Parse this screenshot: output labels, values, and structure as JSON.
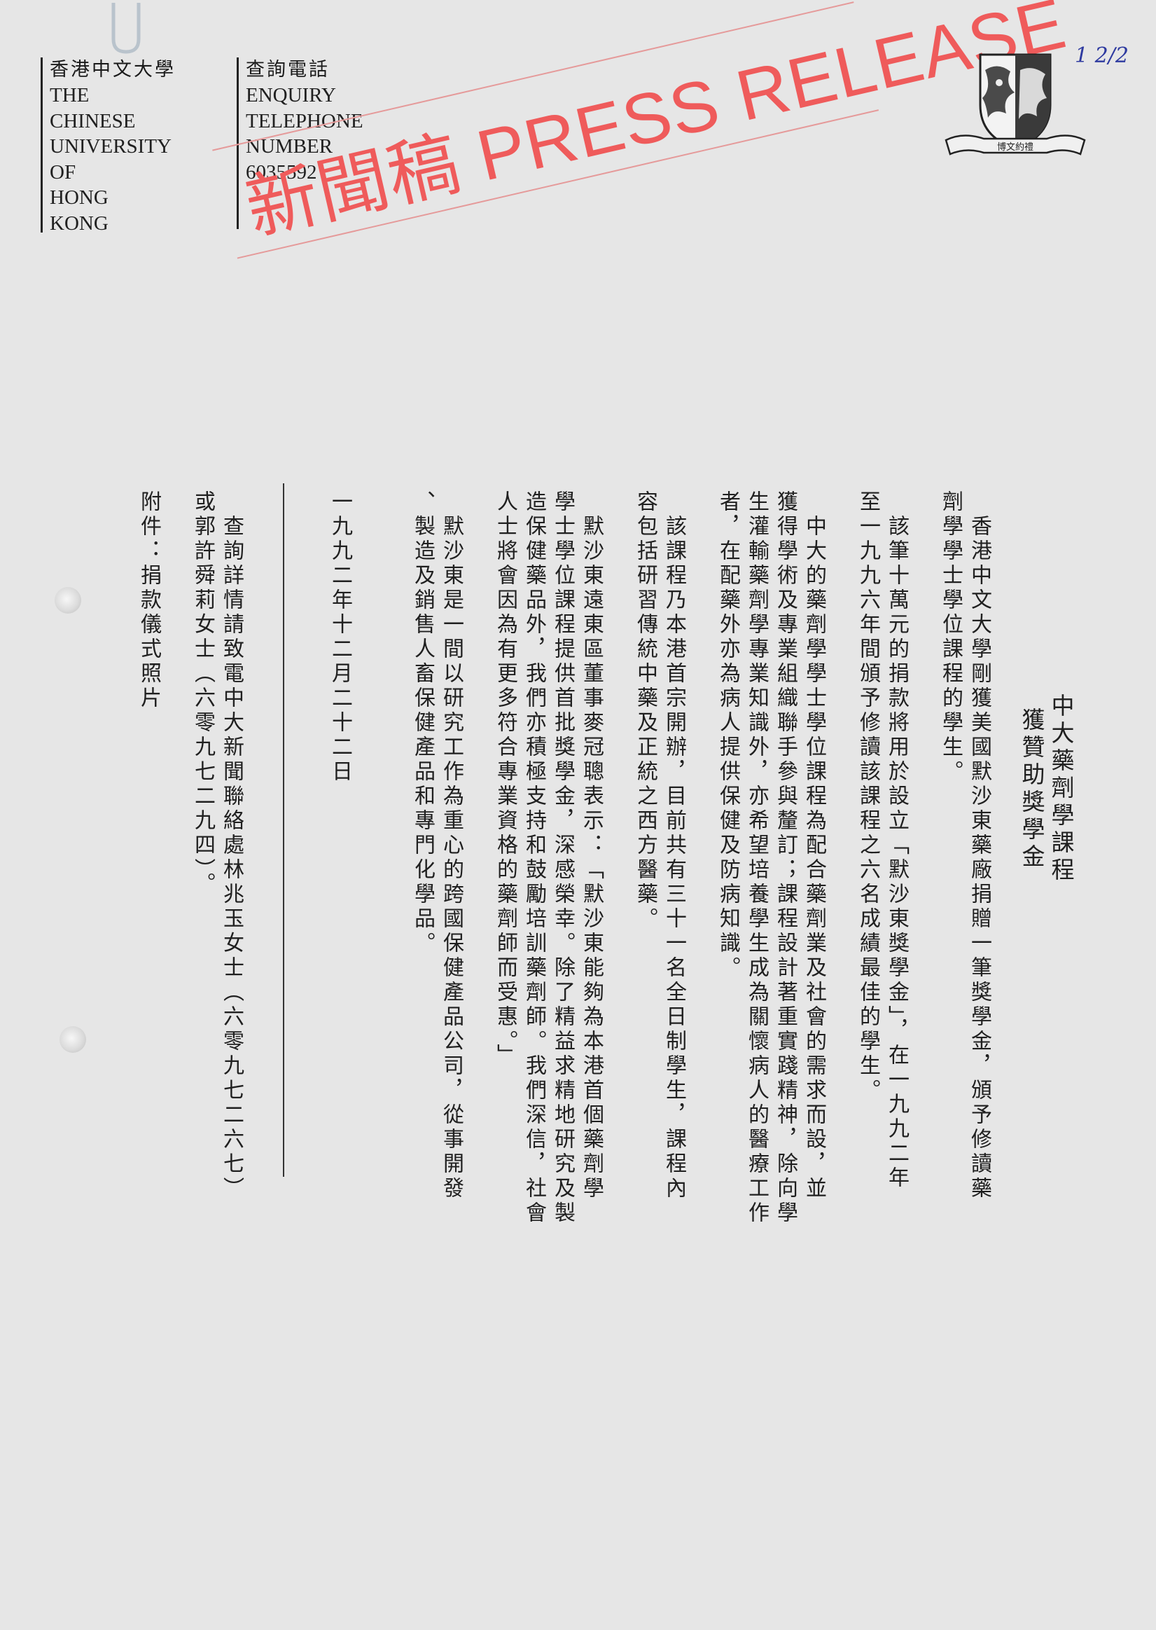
{
  "letterhead": {
    "university_zh": "香港中文大學",
    "university_en_lines": [
      "THE",
      "CHINESE",
      "UNIVERSITY",
      "OF",
      "HONG",
      "KONG"
    ],
    "enquiry_zh": "查詢電話",
    "enquiry_en_lines": [
      "ENQUIRY",
      "TELEPHONE",
      "NUMBER",
      "6035592"
    ]
  },
  "stamp": {
    "text": "新聞稿 PRESS RELEASE"
  },
  "crest": {
    "motto": "博文約禮"
  },
  "handwritten_number": "1 2/2",
  "title": {
    "line1": "中大藥劑學課程",
    "line2": "獲贊助獎學金"
  },
  "body_columns": [
    "　香港中文大學剛獲美國默沙東藥廠捐贈一筆獎學金，頒予修讀藥",
    "劑學學士學位課程的學生。",
    "　該筆十萬元的捐款將用於設立「默沙東獎學金」，在一九九二年",
    "至一九九六年間頒予修讀該課程之六名成績最佳的學生。",
    "　中大的藥劑學學士學位課程為配合藥劑業及社會的需求而設，並",
    "獲得學術及專業組織聯手參與釐訂；課程設計著重實踐精神，除向學",
    "生灌輸藥劑學專業知識外，亦希望培養學生成為關懷病人的醫療工作",
    "者，在配藥外亦為病人提供保健及防病知識。",
    "　該課程乃本港首宗開辦，目前共有三十一名全日制學生，課程內",
    "容包括研習傳統中藥及正統之西方醫藥。",
    "　默沙東遠東區董事麥冠聰表示：「默沙東能夠為本港首個藥劑學",
    "學士學位課程提供首批獎學金，深感榮幸。除了精益求精地研究及製",
    "造保健藥品外，我們亦積極支持和鼓勵培訓藥劑師。我們深信，社會",
    "人士將會因為有更多符合專業資格的藥劑師而受惠。」",
    "　默沙東是一間以研究工作為重心的跨國保健產品公司，從事開發",
    "、製造及銷售人畜保健產品和專門化學品。"
  ],
  "date": "一九九二年十二月二十二日",
  "contact": [
    "　查詢詳情請致電中大新聞聯絡處林兆玉女士（六零九七二六七）",
    "或郭許舜莉女士（六零九七二九四）。"
  ],
  "attachment": "附件：捐款儀式照片"
}
